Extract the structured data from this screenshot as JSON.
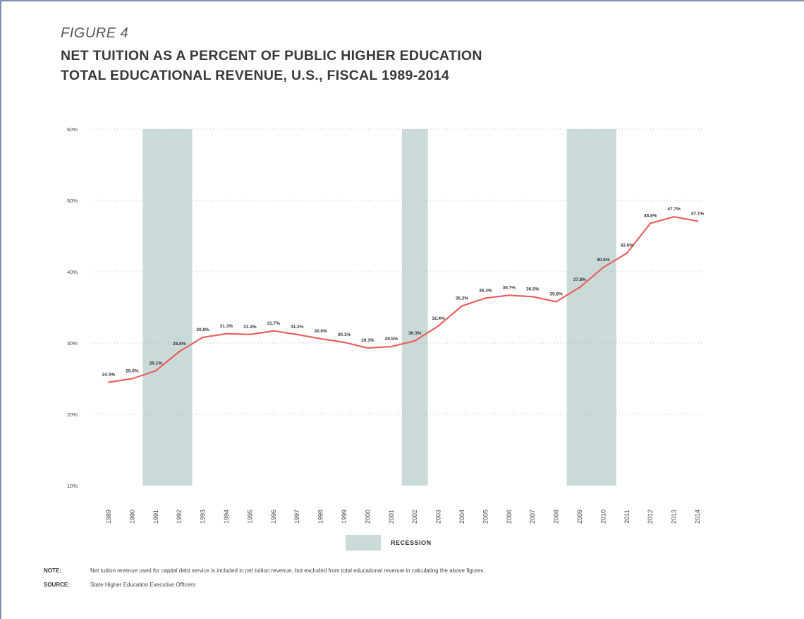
{
  "figure_label": "FIGURE 4",
  "title_line1": "NET TUITION AS A PERCENT OF PUBLIC HIGHER EDUCATION",
  "title_line2": "TOTAL EDUCATIONAL REVENUE, U.S., FISCAL 1989-2014",
  "legend_label": "RECESSION",
  "note_key": "NOTE:",
  "note_text": "Net tuition revenue used for capital debt service is included in net tuition revenue, but excluded from total educational revenue in calculating the above figures.",
  "source_key": "SOURCE:",
  "source_text": "State Higher Education Executive Officers",
  "colors": {
    "line": "#e8615f",
    "recession": "#c9dad9",
    "grid": "#bbbbbb"
  },
  "chart_data": {
    "type": "line",
    "title": "NET TUITION AS A PERCENT OF PUBLIC HIGHER EDUCATION TOTAL EDUCATIONAL REVENUE, U.S., FISCAL 1989-2014",
    "ylim": [
      10,
      60
    ],
    "yticks": [
      "10%",
      "20%",
      "30%",
      "40%",
      "50%",
      "60%"
    ],
    "grid": true,
    "legend_position": "bottom",
    "categories": [
      "1989",
      "1990",
      "1991",
      "1992",
      "1993",
      "1994",
      "1995",
      "1996",
      "1997",
      "1998",
      "1999",
      "2000",
      "2001",
      "2002",
      "2003",
      "2004",
      "2005",
      "2006",
      "2007",
      "2008",
      "2009",
      "2010",
      "2011",
      "2012",
      "2013",
      "2014"
    ],
    "values": [
      24.5,
      25.0,
      26.1,
      28.8,
      30.8,
      31.3,
      31.2,
      31.7,
      31.2,
      30.6,
      30.1,
      29.3,
      29.5,
      30.3,
      32.4,
      35.2,
      36.3,
      36.7,
      36.5,
      35.8,
      37.8,
      40.6,
      42.6,
      46.8,
      47.7,
      47.1
    ],
    "data_labels": [
      "24.5%",
      "25.0%",
      "26.1%",
      "28.8%",
      "30.8%",
      "31.3%",
      "31.2%",
      "31.7%",
      "31.2%",
      "30.6%",
      "30.1%",
      "29.3%",
      "29.5%",
      "30.3%",
      "32.4%",
      "35.2%",
      "36.3%",
      "36.7%",
      "36.5%",
      "35.8%",
      "37.8%",
      "40.6%",
      "42.6%",
      "46.8%",
      "47.7%",
      "47.1%"
    ],
    "recessions": [
      [
        "1991",
        "1992"
      ],
      [
        "2002",
        "2002"
      ],
      [
        "2009",
        "2010"
      ]
    ]
  }
}
